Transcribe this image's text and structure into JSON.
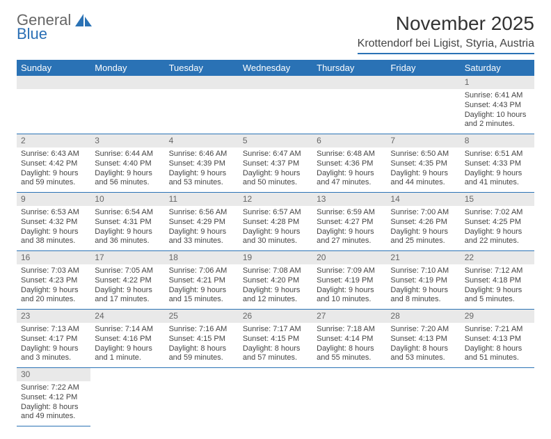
{
  "logo": {
    "line1": "General",
    "line2": "Blue"
  },
  "title": "November 2025",
  "location": "Krottendorf bei Ligist, Styria, Austria",
  "colors": {
    "header_bg": "#2a72b5",
    "header_fg": "#ffffff",
    "daynum_bg": "#e9e9e9",
    "rule": "#2a72b5",
    "logo_accent": "#2a72b5"
  },
  "weekdays": [
    "Sunday",
    "Monday",
    "Tuesday",
    "Wednesday",
    "Thursday",
    "Friday",
    "Saturday"
  ],
  "weeks": [
    [
      null,
      null,
      null,
      null,
      null,
      null,
      {
        "n": "1",
        "sr": "Sunrise: 6:41 AM",
        "ss": "Sunset: 4:43 PM",
        "dl1": "Daylight: 10 hours",
        "dl2": "and 2 minutes."
      }
    ],
    [
      {
        "n": "2",
        "sr": "Sunrise: 6:43 AM",
        "ss": "Sunset: 4:42 PM",
        "dl1": "Daylight: 9 hours",
        "dl2": "and 59 minutes."
      },
      {
        "n": "3",
        "sr": "Sunrise: 6:44 AM",
        "ss": "Sunset: 4:40 PM",
        "dl1": "Daylight: 9 hours",
        "dl2": "and 56 minutes."
      },
      {
        "n": "4",
        "sr": "Sunrise: 6:46 AM",
        "ss": "Sunset: 4:39 PM",
        "dl1": "Daylight: 9 hours",
        "dl2": "and 53 minutes."
      },
      {
        "n": "5",
        "sr": "Sunrise: 6:47 AM",
        "ss": "Sunset: 4:37 PM",
        "dl1": "Daylight: 9 hours",
        "dl2": "and 50 minutes."
      },
      {
        "n": "6",
        "sr": "Sunrise: 6:48 AM",
        "ss": "Sunset: 4:36 PM",
        "dl1": "Daylight: 9 hours",
        "dl2": "and 47 minutes."
      },
      {
        "n": "7",
        "sr": "Sunrise: 6:50 AM",
        "ss": "Sunset: 4:35 PM",
        "dl1": "Daylight: 9 hours",
        "dl2": "and 44 minutes."
      },
      {
        "n": "8",
        "sr": "Sunrise: 6:51 AM",
        "ss": "Sunset: 4:33 PM",
        "dl1": "Daylight: 9 hours",
        "dl2": "and 41 minutes."
      }
    ],
    [
      {
        "n": "9",
        "sr": "Sunrise: 6:53 AM",
        "ss": "Sunset: 4:32 PM",
        "dl1": "Daylight: 9 hours",
        "dl2": "and 38 minutes."
      },
      {
        "n": "10",
        "sr": "Sunrise: 6:54 AM",
        "ss": "Sunset: 4:31 PM",
        "dl1": "Daylight: 9 hours",
        "dl2": "and 36 minutes."
      },
      {
        "n": "11",
        "sr": "Sunrise: 6:56 AM",
        "ss": "Sunset: 4:29 PM",
        "dl1": "Daylight: 9 hours",
        "dl2": "and 33 minutes."
      },
      {
        "n": "12",
        "sr": "Sunrise: 6:57 AM",
        "ss": "Sunset: 4:28 PM",
        "dl1": "Daylight: 9 hours",
        "dl2": "and 30 minutes."
      },
      {
        "n": "13",
        "sr": "Sunrise: 6:59 AM",
        "ss": "Sunset: 4:27 PM",
        "dl1": "Daylight: 9 hours",
        "dl2": "and 27 minutes."
      },
      {
        "n": "14",
        "sr": "Sunrise: 7:00 AM",
        "ss": "Sunset: 4:26 PM",
        "dl1": "Daylight: 9 hours",
        "dl2": "and 25 minutes."
      },
      {
        "n": "15",
        "sr": "Sunrise: 7:02 AM",
        "ss": "Sunset: 4:25 PM",
        "dl1": "Daylight: 9 hours",
        "dl2": "and 22 minutes."
      }
    ],
    [
      {
        "n": "16",
        "sr": "Sunrise: 7:03 AM",
        "ss": "Sunset: 4:23 PM",
        "dl1": "Daylight: 9 hours",
        "dl2": "and 20 minutes."
      },
      {
        "n": "17",
        "sr": "Sunrise: 7:05 AM",
        "ss": "Sunset: 4:22 PM",
        "dl1": "Daylight: 9 hours",
        "dl2": "and 17 minutes."
      },
      {
        "n": "18",
        "sr": "Sunrise: 7:06 AM",
        "ss": "Sunset: 4:21 PM",
        "dl1": "Daylight: 9 hours",
        "dl2": "and 15 minutes."
      },
      {
        "n": "19",
        "sr": "Sunrise: 7:08 AM",
        "ss": "Sunset: 4:20 PM",
        "dl1": "Daylight: 9 hours",
        "dl2": "and 12 minutes."
      },
      {
        "n": "20",
        "sr": "Sunrise: 7:09 AM",
        "ss": "Sunset: 4:19 PM",
        "dl1": "Daylight: 9 hours",
        "dl2": "and 10 minutes."
      },
      {
        "n": "21",
        "sr": "Sunrise: 7:10 AM",
        "ss": "Sunset: 4:19 PM",
        "dl1": "Daylight: 9 hours",
        "dl2": "and 8 minutes."
      },
      {
        "n": "22",
        "sr": "Sunrise: 7:12 AM",
        "ss": "Sunset: 4:18 PM",
        "dl1": "Daylight: 9 hours",
        "dl2": "and 5 minutes."
      }
    ],
    [
      {
        "n": "23",
        "sr": "Sunrise: 7:13 AM",
        "ss": "Sunset: 4:17 PM",
        "dl1": "Daylight: 9 hours",
        "dl2": "and 3 minutes."
      },
      {
        "n": "24",
        "sr": "Sunrise: 7:14 AM",
        "ss": "Sunset: 4:16 PM",
        "dl1": "Daylight: 9 hours",
        "dl2": "and 1 minute."
      },
      {
        "n": "25",
        "sr": "Sunrise: 7:16 AM",
        "ss": "Sunset: 4:15 PM",
        "dl1": "Daylight: 8 hours",
        "dl2": "and 59 minutes."
      },
      {
        "n": "26",
        "sr": "Sunrise: 7:17 AM",
        "ss": "Sunset: 4:15 PM",
        "dl1": "Daylight: 8 hours",
        "dl2": "and 57 minutes."
      },
      {
        "n": "27",
        "sr": "Sunrise: 7:18 AM",
        "ss": "Sunset: 4:14 PM",
        "dl1": "Daylight: 8 hours",
        "dl2": "and 55 minutes."
      },
      {
        "n": "28",
        "sr": "Sunrise: 7:20 AM",
        "ss": "Sunset: 4:13 PM",
        "dl1": "Daylight: 8 hours",
        "dl2": "and 53 minutes."
      },
      {
        "n": "29",
        "sr": "Sunrise: 7:21 AM",
        "ss": "Sunset: 4:13 PM",
        "dl1": "Daylight: 8 hours",
        "dl2": "and 51 minutes."
      }
    ],
    [
      {
        "n": "30",
        "sr": "Sunrise: 7:22 AM",
        "ss": "Sunset: 4:12 PM",
        "dl1": "Daylight: 8 hours",
        "dl2": "and 49 minutes."
      },
      null,
      null,
      null,
      null,
      null,
      null
    ]
  ]
}
